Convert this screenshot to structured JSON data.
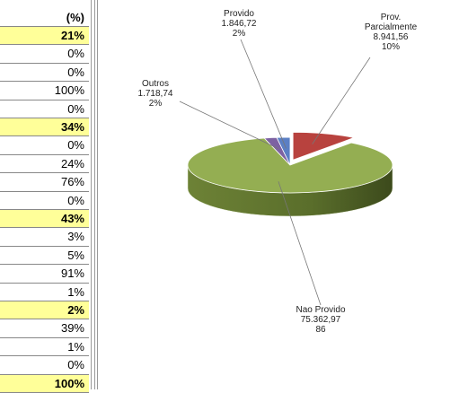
{
  "table": {
    "header": "(%)",
    "rows": [
      "21%",
      "0%",
      "0%",
      "100%",
      "0%",
      "34%",
      "0%",
      "24%",
      "76%",
      "0%",
      "43%",
      "3%",
      "5%",
      "91%",
      "1%",
      "2%",
      "39%",
      "1%",
      "0%",
      "100%"
    ]
  },
  "chart_data": {
    "type": "pie",
    "categories": [
      "Provido",
      "Prov. Parcialmente",
      "Nao Provido",
      "Outros"
    ],
    "values": [
      1846.72,
      8941.56,
      75362.97,
      1718.74
    ],
    "value_labels": [
      "1.846,72",
      "8.941,56",
      "75.362,97",
      "1.718,74"
    ],
    "percents": [
      2,
      10,
      86,
      2
    ],
    "percent_labels": [
      "2%",
      "10%",
      "86",
      "2%"
    ],
    "colors": [
      "#5b7fc4",
      "#b8423e",
      "#94ae52",
      "#7d62a2"
    ]
  }
}
